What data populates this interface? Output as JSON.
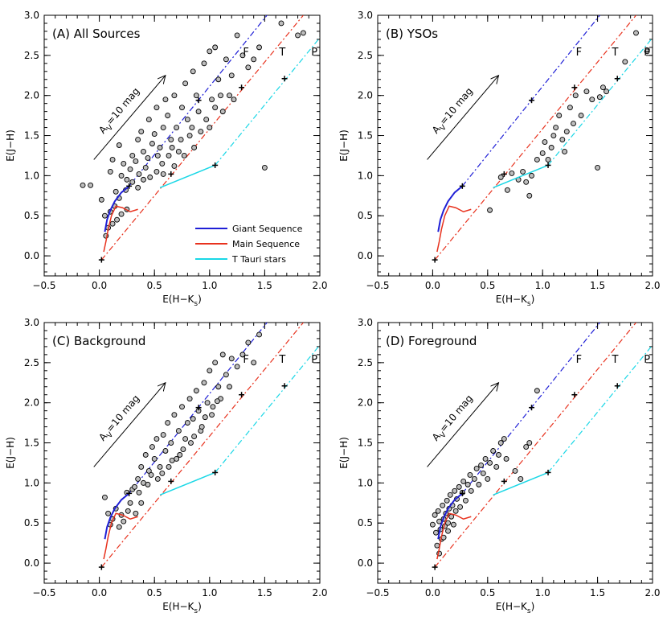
{
  "colors": {
    "giant": "#1f1fd6",
    "main": "#e8321e",
    "ttauri": "#19d7e6",
    "point_fill": "#bdbdbd",
    "point_stroke": "#000000"
  },
  "axes": {
    "xlabel": "E(H−K",
    "xlabel_sub": "s",
    "xlabel_close": ")",
    "ylabel": "E(J−H)",
    "xlim": [
      -0.5,
      2.0
    ],
    "ylim": [
      -0.25,
      3.0
    ],
    "xticks": [
      "−0.5",
      "0.0",
      "0.5",
      "1.0",
      "1.5",
      "2.0"
    ],
    "xtick_values": [
      -0.5,
      0.0,
      0.5,
      1.0,
      1.5,
      2.0
    ],
    "yticks": [
      "0.0",
      "0.5",
      "1.0",
      "1.5",
      "2.0",
      "2.5",
      "3.0"
    ],
    "ytick_values": [
      0.0,
      0.5,
      1.0,
      1.5,
      2.0,
      2.5,
      3.0
    ]
  },
  "sequence_labels": [
    "F",
    "T",
    "P"
  ],
  "arrow": {
    "label_main": "A",
    "label_sub": "V",
    "label_rest": "=10 mag",
    "from": [
      -0.05,
      1.2
    ],
    "to": [
      0.6,
      2.25
    ]
  },
  "legend": {
    "entries": [
      "Giant Sequence",
      "Main Sequence",
      "T Tauri stars"
    ]
  },
  "reddening_lines": {
    "giant": {
      "from": [
        0.27,
        0.87
      ],
      "to": [
        1.55,
        3.05
      ]
    },
    "main": {
      "from": [
        0.02,
        -0.05
      ],
      "to": [
        1.85,
        3.0
      ]
    },
    "ttauri": {
      "from": [
        1.05,
        1.13
      ],
      "to": [
        2.0,
        2.72
      ]
    }
  },
  "markers": [
    [
      0.02,
      -0.05
    ],
    [
      0.27,
      0.87
    ],
    [
      0.65,
      1.02
    ],
    [
      0.9,
      1.94
    ],
    [
      1.05,
      1.13
    ],
    [
      1.29,
      2.1
    ],
    [
      1.68,
      2.21
    ]
  ],
  "curves": {
    "giant": [
      [
        0.05,
        0.3
      ],
      [
        0.07,
        0.45
      ],
      [
        0.1,
        0.57
      ],
      [
        0.14,
        0.68
      ],
      [
        0.2,
        0.79
      ],
      [
        0.27,
        0.87
      ]
    ],
    "main": [
      [
        0.04,
        0.05
      ],
      [
        0.06,
        0.18
      ],
      [
        0.08,
        0.33
      ],
      [
        0.11,
        0.5
      ],
      [
        0.15,
        0.62
      ],
      [
        0.21,
        0.6
      ],
      [
        0.28,
        0.55
      ],
      [
        0.35,
        0.58
      ]
    ],
    "ttauri": [
      [
        0.55,
        0.85
      ],
      [
        1.05,
        1.13
      ]
    ]
  },
  "chart_data": [
    {
      "type": "scatter",
      "title": "(A)  All Sources",
      "xlabel": "E(H−Ks)",
      "ylabel": "E(J−H)",
      "xlim": [
        -0.5,
        2.0
      ],
      "ylim": [
        -0.25,
        3.0
      ],
      "show_legend": true,
      "legend_placement": "center-right",
      "points": [
        [
          -0.15,
          0.88
        ],
        [
          -0.08,
          0.88
        ],
        [
          0.02,
          0.7
        ],
        [
          0.05,
          0.5
        ],
        [
          0.1,
          1.05
        ],
        [
          0.12,
          1.2
        ],
        [
          0.18,
          1.38
        ],
        [
          0.22,
          1.15
        ],
        [
          0.25,
          0.95
        ],
        [
          0.3,
          1.25
        ],
        [
          0.35,
          1.45
        ],
        [
          0.38,
          1.55
        ],
        [
          0.4,
          1.3
        ],
        [
          0.42,
          1.1
        ],
        [
          0.45,
          1.7
        ],
        [
          0.5,
          1.52
        ],
        [
          0.52,
          1.85
        ],
        [
          0.55,
          1.35
        ],
        [
          0.58,
          1.6
        ],
        [
          0.6,
          1.95
        ],
        [
          0.62,
          1.75
        ],
        [
          0.65,
          1.45
        ],
        [
          0.68,
          2.0
        ],
        [
          0.7,
          1.6
        ],
        [
          0.72,
          1.3
        ],
        [
          0.75,
          1.85
        ],
        [
          0.78,
          2.15
        ],
        [
          0.8,
          1.7
        ],
        [
          0.82,
          1.5
        ],
        [
          0.85,
          2.3
        ],
        [
          0.88,
          2.0
        ],
        [
          0.9,
          1.8
        ],
        [
          0.95,
          2.4
        ],
        [
          1.0,
          2.55
        ],
        [
          1.02,
          1.95
        ],
        [
          1.05,
          2.6
        ],
        [
          1.08,
          2.2
        ],
        [
          1.1,
          2.0
        ],
        [
          1.15,
          2.45
        ],
        [
          1.2,
          2.25
        ],
        [
          1.25,
          2.75
        ],
        [
          1.3,
          2.5
        ],
        [
          1.35,
          2.35
        ],
        [
          1.4,
          2.45
        ],
        [
          1.45,
          2.6
        ],
        [
          1.5,
          1.1
        ],
        [
          1.65,
          2.9
        ],
        [
          1.8,
          2.75
        ],
        [
          1.85,
          2.78
        ],
        [
          0.2,
          1.0
        ],
        [
          0.28,
          1.08
        ],
        [
          0.33,
          1.18
        ],
        [
          0.36,
          1.02
        ],
        [
          0.44,
          1.22
        ],
        [
          0.48,
          1.4
        ],
        [
          0.53,
          1.25
        ],
        [
          0.57,
          1.15
        ],
        [
          0.63,
          1.25
        ],
        [
          0.66,
          1.35
        ],
        [
          0.74,
          1.45
        ],
        [
          0.77,
          1.25
        ],
        [
          0.84,
          1.6
        ],
        [
          0.86,
          1.35
        ],
        [
          0.92,
          1.55
        ],
        [
          0.97,
          1.7
        ],
        [
          1.0,
          1.6
        ],
        [
          1.05,
          1.85
        ],
        [
          1.12,
          1.8
        ],
        [
          1.18,
          2.0
        ],
        [
          1.22,
          1.95
        ],
        [
          0.15,
          0.8
        ],
        [
          0.18,
          0.72
        ],
        [
          0.24,
          0.82
        ],
        [
          0.3,
          0.92
        ],
        [
          0.35,
          0.85
        ],
        [
          0.4,
          0.95
        ],
        [
          0.46,
          0.98
        ],
        [
          0.52,
          1.05
        ],
        [
          0.58,
          1.02
        ],
        [
          0.68,
          1.12
        ],
        [
          0.1,
          0.55
        ],
        [
          0.14,
          0.62
        ],
        [
          0.16,
          0.45
        ],
        [
          0.2,
          0.52
        ],
        [
          0.25,
          0.58
        ],
        [
          0.08,
          0.35
        ],
        [
          0.12,
          0.4
        ],
        [
          0.06,
          0.25
        ]
      ]
    },
    {
      "type": "scatter",
      "title": "(B)  YSOs",
      "xlabel": "E(H−Ks)",
      "ylabel": "E(J−H)",
      "xlim": [
        -0.5,
        2.0
      ],
      "ylim": [
        -0.25,
        3.0
      ],
      "show_legend": false,
      "points": [
        [
          0.52,
          0.57
        ],
        [
          0.62,
          0.98
        ],
        [
          0.68,
          0.82
        ],
        [
          0.72,
          1.03
        ],
        [
          0.78,
          0.95
        ],
        [
          0.82,
          1.05
        ],
        [
          0.85,
          0.92
        ],
        [
          0.88,
          0.75
        ],
        [
          0.9,
          1.0
        ],
        [
          0.95,
          1.2
        ],
        [
          1.0,
          1.28
        ],
        [
          1.02,
          1.42
        ],
        [
          1.05,
          1.2
        ],
        [
          1.08,
          1.35
        ],
        [
          1.1,
          1.5
        ],
        [
          1.12,
          1.6
        ],
        [
          1.15,
          1.75
        ],
        [
          1.18,
          1.45
        ],
        [
          1.2,
          1.3
        ],
        [
          1.22,
          1.55
        ],
        [
          1.25,
          1.85
        ],
        [
          1.28,
          1.65
        ],
        [
          1.3,
          2.0
        ],
        [
          1.35,
          1.75
        ],
        [
          1.4,
          2.05
        ],
        [
          1.45,
          1.95
        ],
        [
          1.5,
          1.1
        ],
        [
          1.52,
          1.98
        ],
        [
          1.55,
          2.1
        ],
        [
          1.58,
          2.05
        ],
        [
          1.75,
          2.42
        ],
        [
          1.85,
          2.78
        ],
        [
          1.95,
          2.55
        ]
      ]
    },
    {
      "type": "scatter",
      "title": "(C)  Background",
      "xlabel": "E(H−Ks)",
      "ylabel": "E(J−H)",
      "xlim": [
        -0.5,
        2.0
      ],
      "ylim": [
        -0.25,
        3.0
      ],
      "show_legend": false,
      "points": [
        [
          0.08,
          0.62
        ],
        [
          0.12,
          0.55
        ],
        [
          0.15,
          0.68
        ],
        [
          0.18,
          0.45
        ],
        [
          0.22,
          0.52
        ],
        [
          0.28,
          0.75
        ],
        [
          0.3,
          0.92
        ],
        [
          0.35,
          1.05
        ],
        [
          0.38,
          1.2
        ],
        [
          0.42,
          1.35
        ],
        [
          0.45,
          1.15
        ],
        [
          0.48,
          1.45
        ],
        [
          0.5,
          1.3
        ],
        [
          0.52,
          1.55
        ],
        [
          0.55,
          1.2
        ],
        [
          0.58,
          1.6
        ],
        [
          0.6,
          1.4
        ],
        [
          0.62,
          1.75
        ],
        [
          0.65,
          1.5
        ],
        [
          0.68,
          1.85
        ],
        [
          0.7,
          1.3
        ],
        [
          0.72,
          1.65
        ],
        [
          0.75,
          1.95
        ],
        [
          0.78,
          1.55
        ],
        [
          0.8,
          1.75
        ],
        [
          0.82,
          2.05
        ],
        [
          0.85,
          1.8
        ],
        [
          0.88,
          2.15
        ],
        [
          0.9,
          1.9
        ],
        [
          0.92,
          1.65
        ],
        [
          0.95,
          2.25
        ],
        [
          0.98,
          2.0
        ],
        [
          1.0,
          2.4
        ],
        [
          1.02,
          1.85
        ],
        [
          1.05,
          2.5
        ],
        [
          1.08,
          2.2
        ],
        [
          1.1,
          2.05
        ],
        [
          1.12,
          2.6
        ],
        [
          1.15,
          2.35
        ],
        [
          1.18,
          2.2
        ],
        [
          1.2,
          2.55
        ],
        [
          1.25,
          2.45
        ],
        [
          1.3,
          2.6
        ],
        [
          1.35,
          2.75
        ],
        [
          1.4,
          2.5
        ],
        [
          1.45,
          2.85
        ],
        [
          0.25,
          0.88
        ],
        [
          0.32,
          0.95
        ],
        [
          0.36,
          0.88
        ],
        [
          0.4,
          1.0
        ],
        [
          0.44,
          0.98
        ],
        [
          0.47,
          1.1
        ],
        [
          0.53,
          1.05
        ],
        [
          0.57,
          1.12
        ],
        [
          0.63,
          1.2
        ],
        [
          0.66,
          1.28
        ],
        [
          0.73,
          1.35
        ],
        [
          0.76,
          1.42
        ],
        [
          0.83,
          1.5
        ],
        [
          0.86,
          1.58
        ],
        [
          0.93,
          1.7
        ],
        [
          0.96,
          1.82
        ],
        [
          1.03,
          1.95
        ],
        [
          1.07,
          2.02
        ],
        [
          0.05,
          0.82
        ],
        [
          0.38,
          0.75
        ],
        [
          0.2,
          0.6
        ],
        [
          0.26,
          0.65
        ],
        [
          0.33,
          0.62
        ],
        [
          0.1,
          0.48
        ]
      ]
    },
    {
      "type": "scatter",
      "title": "(D)  Foreground",
      "xlabel": "E(H−Ks)",
      "ylabel": "E(J−H)",
      "xlim": [
        -0.5,
        2.0
      ],
      "ylim": [
        -0.25,
        3.0
      ],
      "show_legend": false,
      "points": [
        [
          0.0,
          0.48
        ],
        [
          0.02,
          0.6
        ],
        [
          0.03,
          0.38
        ],
        [
          0.05,
          0.65
        ],
        [
          0.06,
          0.52
        ],
        [
          0.07,
          0.42
        ],
        [
          0.08,
          0.3
        ],
        [
          0.09,
          0.72
        ],
        [
          0.1,
          0.55
        ],
        [
          0.11,
          0.46
        ],
        [
          0.12,
          0.62
        ],
        [
          0.13,
          0.78
        ],
        [
          0.14,
          0.5
        ],
        [
          0.15,
          0.68
        ],
        [
          0.16,
          0.85
        ],
        [
          0.17,
          0.58
        ],
        [
          0.18,
          0.72
        ],
        [
          0.2,
          0.9
        ],
        [
          0.21,
          0.65
        ],
        [
          0.22,
          0.8
        ],
        [
          0.24,
          0.95
        ],
        [
          0.25,
          0.7
        ],
        [
          0.27,
          0.88
        ],
        [
          0.28,
          1.02
        ],
        [
          0.3,
          0.78
        ],
        [
          0.32,
          0.98
        ],
        [
          0.34,
          1.1
        ],
        [
          0.35,
          0.9
        ],
        [
          0.38,
          1.05
        ],
        [
          0.4,
          1.18
        ],
        [
          0.42,
          0.98
        ],
        [
          0.44,
          1.22
        ],
        [
          0.46,
          1.12
        ],
        [
          0.48,
          1.3
        ],
        [
          0.5,
          1.05
        ],
        [
          0.52,
          1.25
        ],
        [
          0.55,
          1.4
        ],
        [
          0.58,
          1.2
        ],
        [
          0.6,
          1.35
        ],
        [
          0.62,
          1.5
        ],
        [
          0.65,
          1.55
        ],
        [
          0.67,
          1.3
        ],
        [
          0.75,
          1.15
        ],
        [
          0.8,
          1.05
        ],
        [
          0.85,
          1.45
        ],
        [
          0.88,
          1.5
        ],
        [
          0.95,
          2.15
        ],
        [
          0.04,
          0.22
        ],
        [
          0.06,
          0.12
        ],
        [
          0.1,
          0.32
        ],
        [
          0.14,
          0.4
        ],
        [
          0.19,
          0.48
        ]
      ]
    }
  ]
}
